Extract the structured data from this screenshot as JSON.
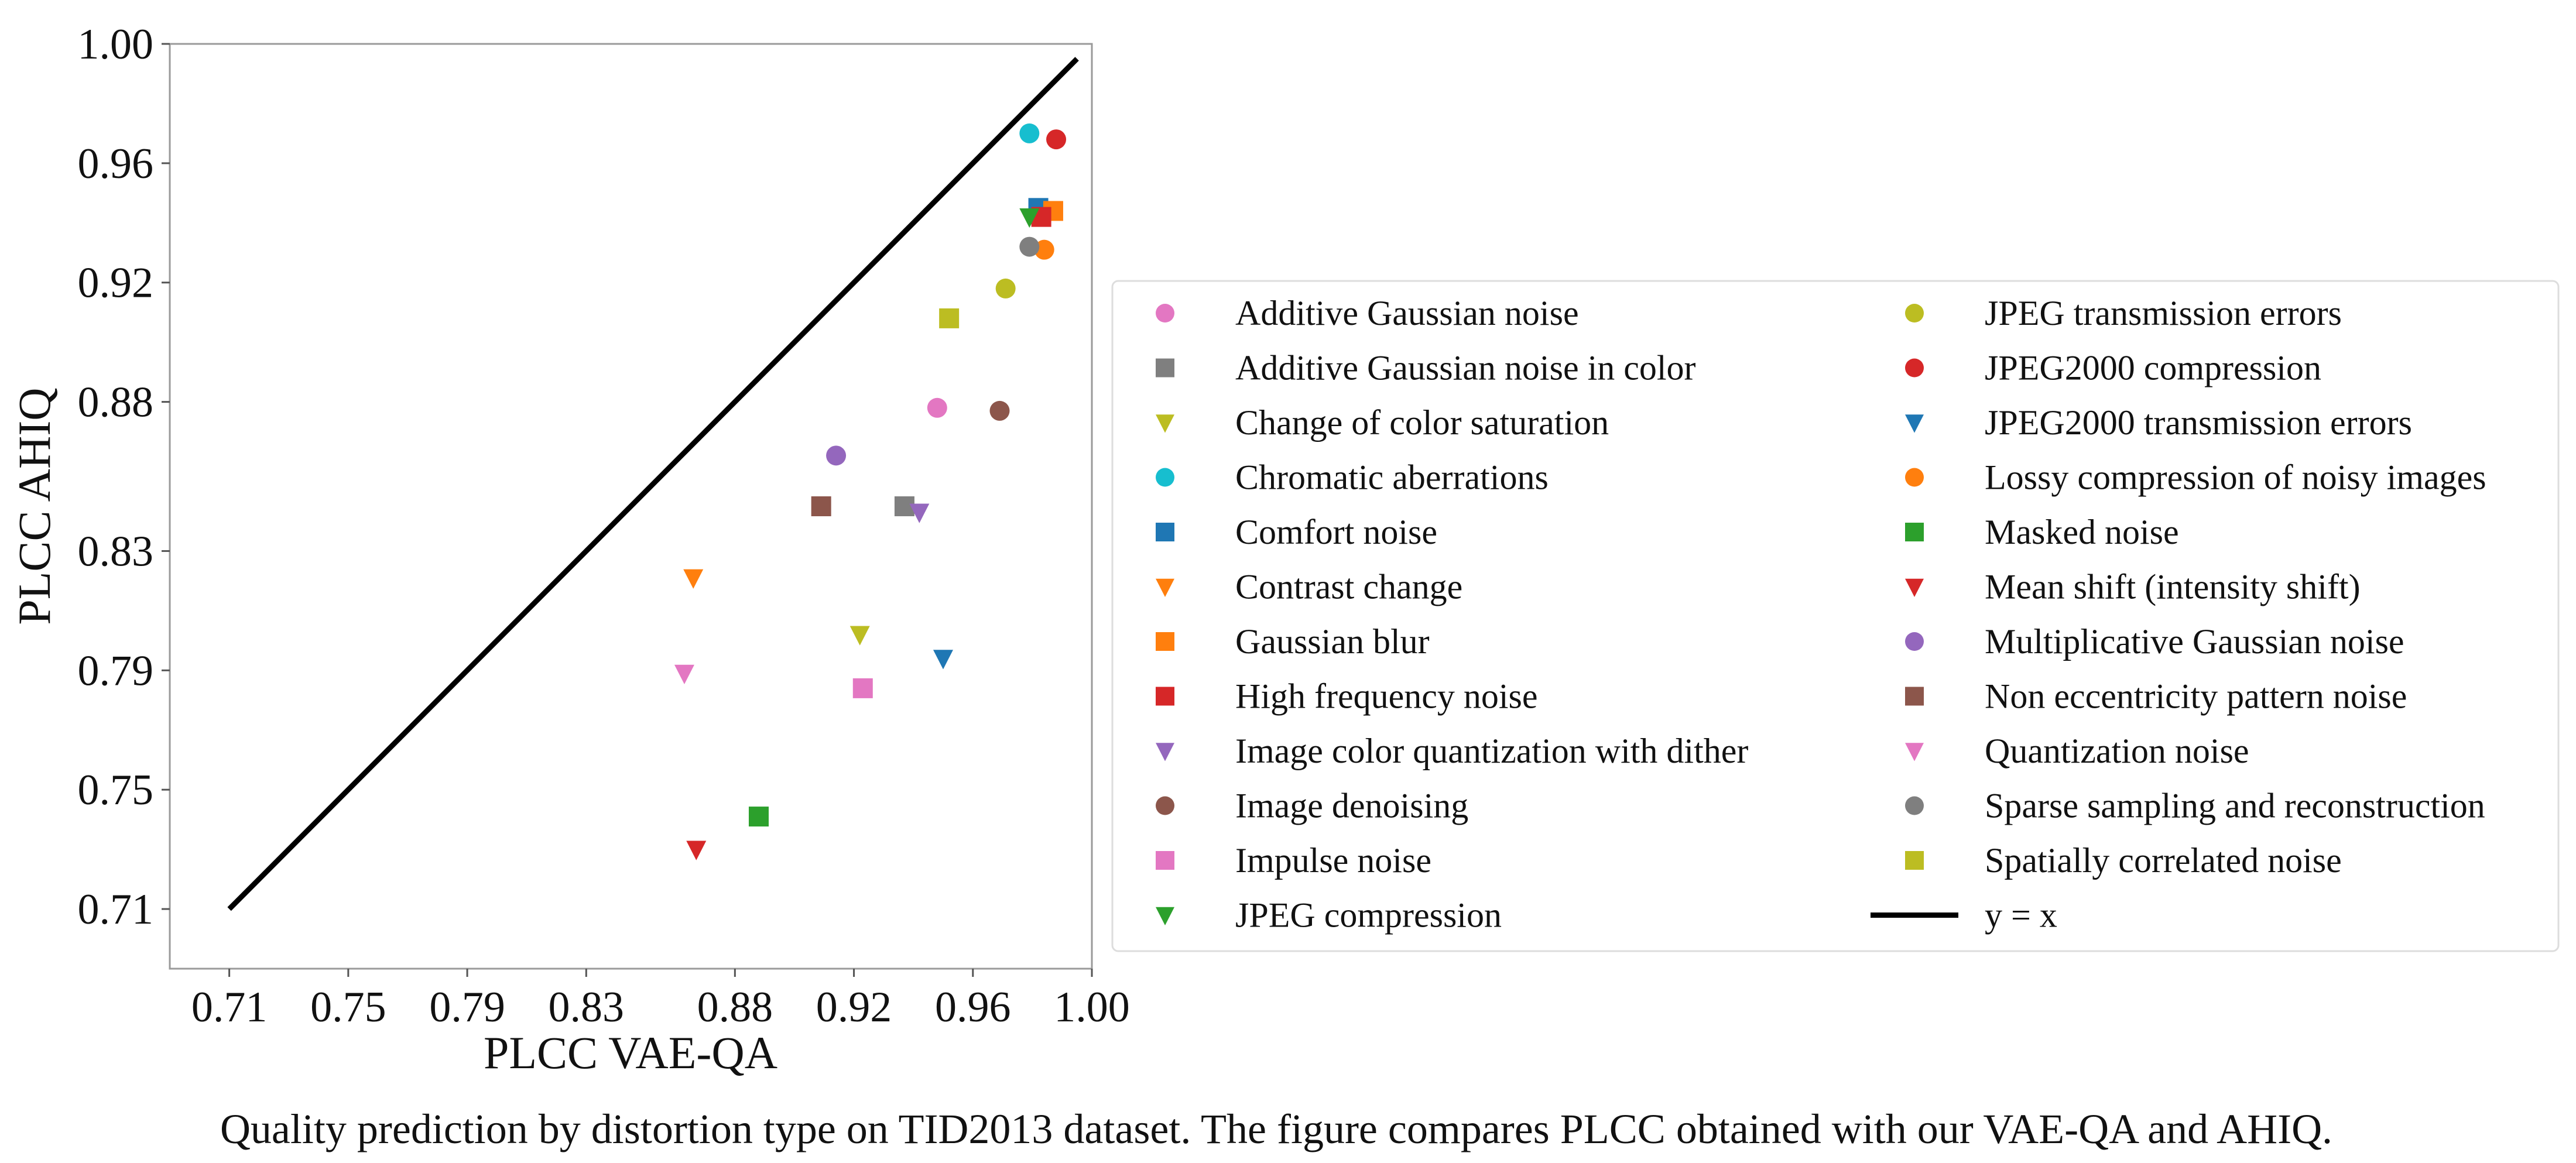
{
  "chart_data": {
    "type": "scatter",
    "title": "",
    "xlabel": "PLCC VAE-QA",
    "ylabel": "PLCC AHIQ",
    "xlim": [
      0.69,
      1.0
    ],
    "ylim": [
      0.69,
      1.0
    ],
    "x_ticks": [
      "0.71",
      "0.75",
      "0.79",
      "0.83",
      "0.88",
      "0.92",
      "0.96",
      "1.00"
    ],
    "y_ticks": [
      "0.71",
      "0.75",
      "0.79",
      "0.83",
      "0.88",
      "0.92",
      "0.96",
      "1.00"
    ],
    "grid": false,
    "legend_position": "right",
    "reference_line": {
      "name": "y = x",
      "color": "#000000",
      "x": [
        0.71,
        0.995
      ],
      "y": [
        0.71,
        0.995
      ]
    },
    "series": [
      {
        "name": "Additive Gaussian noise",
        "marker": "circle",
        "color": "#e377c2",
        "x": 0.948,
        "y": 0.878
      },
      {
        "name": "Additive Gaussian noise in color",
        "marker": "square",
        "color": "#7f7f7f",
        "x": 0.937,
        "y": 0.845
      },
      {
        "name": "Change of color saturation",
        "marker": "triangle-down",
        "color": "#bcbd22",
        "x": 0.922,
        "y": 0.802
      },
      {
        "name": "Chromatic aberrations",
        "marker": "circle",
        "color": "#17becf",
        "x": 0.979,
        "y": 0.97
      },
      {
        "name": "Comfort noise",
        "marker": "square",
        "color": "#1f77b4",
        "x": 0.982,
        "y": 0.945
      },
      {
        "name": "Contrast change",
        "marker": "triangle-down",
        "color": "#ff7f0e",
        "x": 0.866,
        "y": 0.821
      },
      {
        "name": "Gaussian blur",
        "marker": "square",
        "color": "#ff7f0e",
        "x": 0.987,
        "y": 0.944
      },
      {
        "name": "High frequency noise",
        "marker": "square",
        "color": "#d62728",
        "x": 0.983,
        "y": 0.942
      },
      {
        "name": "Image color quantization with dither",
        "marker": "triangle-down",
        "color": "#9467bd",
        "x": 0.942,
        "y": 0.843
      },
      {
        "name": "Image denoising",
        "marker": "circle",
        "color": "#8c564b",
        "x": 0.969,
        "y": 0.877
      },
      {
        "name": "Impulse noise",
        "marker": "square",
        "color": "#e377c2",
        "x": 0.923,
        "y": 0.784
      },
      {
        "name": "JPEG compression",
        "marker": "triangle-down",
        "color": "#2ca02c",
        "x": 0.979,
        "y": 0.942
      },
      {
        "name": "JPEG transmission errors",
        "marker": "circle",
        "color": "#bcbd22",
        "x": 0.971,
        "y": 0.918
      },
      {
        "name": "JPEG2000 compression",
        "marker": "circle",
        "color": "#d62728",
        "x": 0.988,
        "y": 0.968
      },
      {
        "name": "JPEG2000 transmission errors",
        "marker": "triangle-down",
        "color": "#1f77b4",
        "x": 0.95,
        "y": 0.794
      },
      {
        "name": "Lossy compression of noisy images",
        "marker": "circle",
        "color": "#ff7f0e",
        "x": 0.984,
        "y": 0.931
      },
      {
        "name": "Masked noise",
        "marker": "square",
        "color": "#2ca02c",
        "x": 0.888,
        "y": 0.741
      },
      {
        "name": "Mean shift (intensity shift)",
        "marker": "triangle-down",
        "color": "#d62728",
        "x": 0.867,
        "y": 0.73
      },
      {
        "name": "Multiplicative Gaussian noise",
        "marker": "circle",
        "color": "#9467bd",
        "x": 0.914,
        "y": 0.862
      },
      {
        "name": "Non eccentricity pattern noise",
        "marker": "square",
        "color": "#8c564b",
        "x": 0.909,
        "y": 0.845
      },
      {
        "name": "Quantization noise",
        "marker": "triangle-down",
        "color": "#e377c2",
        "x": 0.863,
        "y": 0.789
      },
      {
        "name": "Sparse sampling and reconstruction",
        "marker": "circle",
        "color": "#7f7f7f",
        "x": 0.979,
        "y": 0.932
      },
      {
        "name": "Spatially correlated noise",
        "marker": "square",
        "color": "#bcbd22",
        "x": 0.952,
        "y": 0.908
      }
    ]
  },
  "caption": "Quality prediction by distortion type on TID2013 dataset. The figure compares PLCC obtained with our VAE-QA and AHIQ."
}
